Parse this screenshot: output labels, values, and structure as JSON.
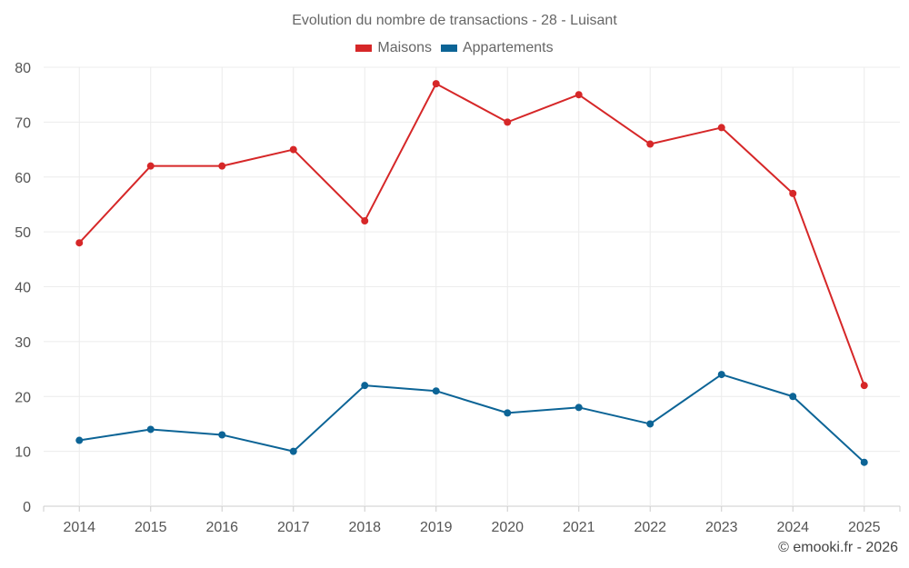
{
  "chart_data": {
    "type": "line",
    "title": "Evolution du nombre de transactions - 28 - Luisant",
    "categories": [
      "2014",
      "2015",
      "2016",
      "2017",
      "2018",
      "2019",
      "2020",
      "2021",
      "2022",
      "2023",
      "2024",
      "2025"
    ],
    "series": [
      {
        "name": "Maisons",
        "color": "#d62728",
        "values": [
          48,
          62,
          62,
          65,
          52,
          77,
          70,
          75,
          66,
          69,
          57,
          22
        ]
      },
      {
        "name": "Appartements",
        "color": "#0c6496",
        "values": [
          12,
          14,
          13,
          10,
          22,
          21,
          17,
          18,
          15,
          24,
          20,
          8
        ]
      }
    ],
    "ylim": [
      0,
      80
    ],
    "yticks": [
      "0",
      "10",
      "20",
      "30",
      "40",
      "50",
      "60",
      "70",
      "80"
    ],
    "grid": true,
    "legend_position": "top-center"
  },
  "credit": "© emooki.fr - 2026"
}
